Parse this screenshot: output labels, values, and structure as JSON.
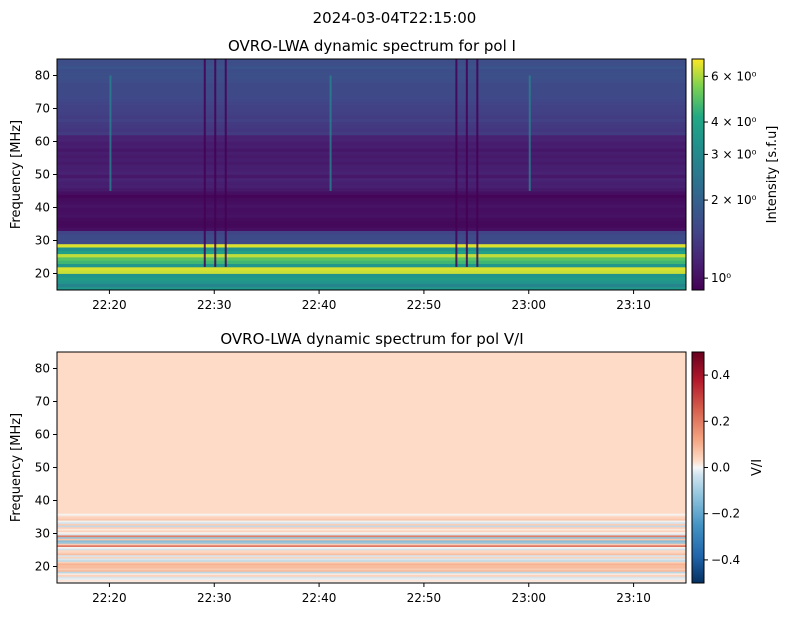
{
  "figure": {
    "suptitle": "2024-03-04T22:15:00"
  },
  "chart_data": [
    {
      "type": "heatmap",
      "title": "OVRO-LWA dynamic spectrum for pol I",
      "xlabel": "",
      "ylabel": "Frequency [MHz]",
      "x_range": [
        "22:15",
        "23:15"
      ],
      "x_ticks": [
        "22:20",
        "22:30",
        "22:40",
        "22:50",
        "23:00",
        "23:10"
      ],
      "ylim": [
        15,
        85
      ],
      "y_ticks": [
        20,
        30,
        40,
        50,
        60,
        70,
        80
      ],
      "colormap": "viridis",
      "colorbar": {
        "label": "Intensity [s.f.u]",
        "scale": "log",
        "range": [
          0.9,
          7.0
        ],
        "ticks": [
          {
            "value": 1,
            "label": "10⁰"
          },
          {
            "value": 2,
            "label": "2 × 10⁰"
          },
          {
            "value": 3,
            "label": "3 × 10⁰"
          },
          {
            "value": 4,
            "label": "4 × 10⁰"
          },
          {
            "value": 6,
            "label": "6 × 10⁰"
          }
        ]
      },
      "features": {
        "rfi_bands_mhz": [
          [
            15,
            36
          ]
        ],
        "vertical_dropouts": [
          "22:29",
          "22:30",
          "22:31",
          "22:53",
          "22:54",
          "22:55"
        ],
        "bursts": [
          "22:20",
          "22:41",
          "23:00"
        ]
      }
    },
    {
      "type": "heatmap",
      "title": "OVRO-LWA dynamic spectrum for pol V/I",
      "xlabel": "",
      "ylabel": "Frequency [MHz]",
      "x_range": [
        "22:15",
        "23:15"
      ],
      "x_ticks": [
        "22:20",
        "22:30",
        "22:40",
        "22:50",
        "23:00",
        "23:10"
      ],
      "ylim": [
        15,
        85
      ],
      "y_ticks": [
        20,
        30,
        40,
        50,
        60,
        70,
        80
      ],
      "colormap": "RdBu_r",
      "colorbar": {
        "label": "V/I",
        "scale": "linear",
        "range": [
          -0.5,
          0.5
        ],
        "ticks": [
          {
            "value": 0.4,
            "label": "0.4"
          },
          {
            "value": 0.2,
            "label": "0.2"
          },
          {
            "value": 0.0,
            "label": "0.0"
          },
          {
            "value": -0.2,
            "label": "−0.2"
          },
          {
            "value": -0.4,
            "label": "−0.4"
          }
        ]
      }
    }
  ]
}
